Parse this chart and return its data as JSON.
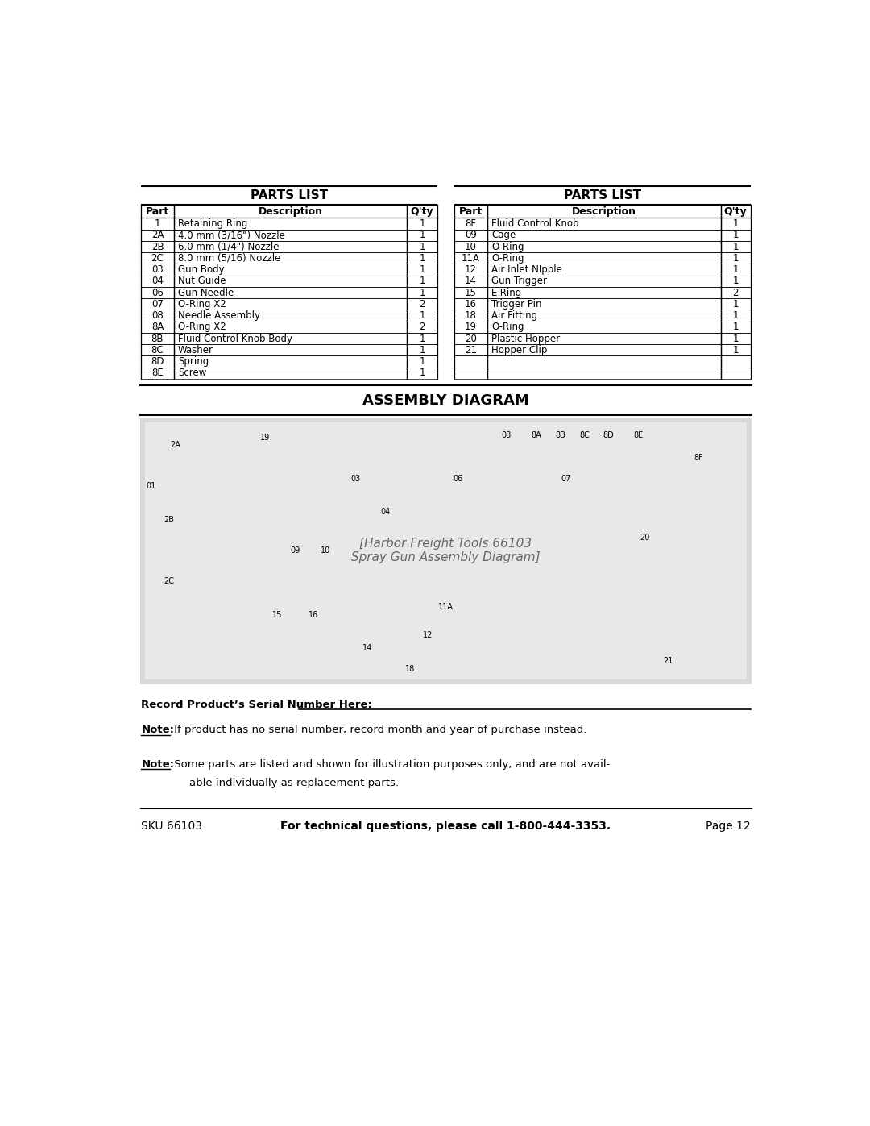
{
  "bg_color": "#ffffff",
  "page_width": 10.8,
  "page_height": 13.97,
  "left_table": {
    "title": "PARTS LIST",
    "headers": [
      "Part",
      "Description",
      "Q'ty"
    ],
    "rows": [
      [
        "1",
        "Retaining Ring",
        "1"
      ],
      [
        "2A",
        "4.0 mm (3/16\") Nozzle",
        "1"
      ],
      [
        "2B",
        "6.0 mm (1/4\") Nozzle",
        "1"
      ],
      [
        "2C",
        "8.0 mm (5/16) Nozzle",
        "1"
      ],
      [
        "03",
        "Gun Body",
        "1"
      ],
      [
        "04",
        "Nut Guide",
        "1"
      ],
      [
        "06",
        "Gun Needle",
        "1"
      ],
      [
        "07",
        "O-Ring X2",
        "2"
      ],
      [
        "08",
        "Needle Assembly",
        "1"
      ],
      [
        "8A",
        "O-Ring X2",
        "2"
      ],
      [
        "8B",
        "Fluid Control Knob Body",
        "1"
      ],
      [
        "8C",
        "Washer",
        "1"
      ],
      [
        "8D",
        "Spring",
        "1"
      ],
      [
        "8E",
        "Screw",
        "1"
      ]
    ]
  },
  "right_table": {
    "title": "PARTS LIST",
    "headers": [
      "Part",
      "Description",
      "Q'ty"
    ],
    "rows": [
      [
        "8F",
        "Fluid Control Knob",
        "1"
      ],
      [
        "09",
        "Cage",
        "1"
      ],
      [
        "10",
        "O-Ring",
        "1"
      ],
      [
        "11A",
        "O-Ring",
        "1"
      ],
      [
        "12",
        "Air Inlet NIpple",
        "1"
      ],
      [
        "14",
        "Gun Trigger",
        "1"
      ],
      [
        "15",
        "E-Ring",
        "2"
      ],
      [
        "16",
        "Trigger Pin",
        "1"
      ],
      [
        "18",
        "Air Fitting",
        "1"
      ],
      [
        "19",
        "O-Ring",
        "1"
      ],
      [
        "20",
        "Plastic Hopper",
        "1"
      ],
      [
        "21",
        "Hopper Clip",
        "1"
      ],
      [
        "",
        "",
        ""
      ],
      [
        "",
        "",
        ""
      ]
    ]
  },
  "assembly_title": "ASSEMBLY DIAGRAM",
  "serial_number_label": "Record Product’s Serial Number Here:",
  "note1_label": "Note:",
  "note1_text": " If product has no serial number, record month and year of purchase instead.",
  "note2_label": "Note:",
  "note2_line1": " Some parts are listed and shown for illustration purposes only, and are not avail-",
  "note2_line2": "able individually as replacement parts.",
  "footer_sku": "SKU 66103",
  "footer_bold": "For technical questions, please call 1-800-444-3353.",
  "footer_page": "Page 12",
  "text_color": "#000000"
}
